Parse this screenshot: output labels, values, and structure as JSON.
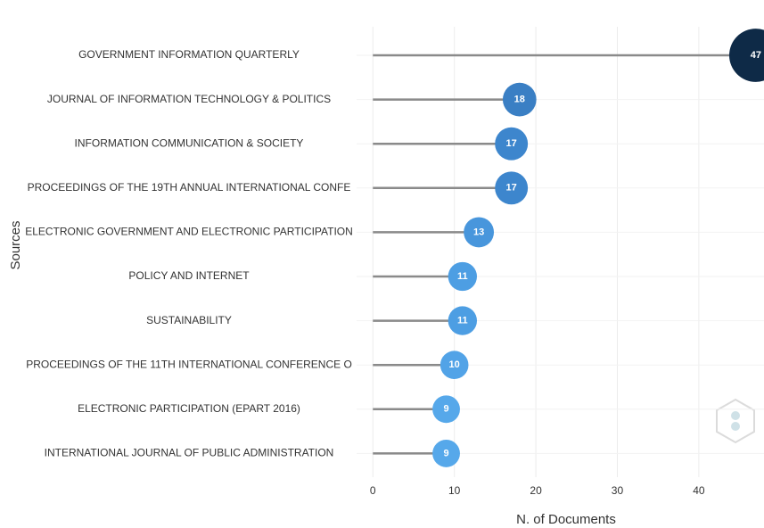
{
  "chart_data": {
    "type": "lollipop",
    "orientation": "horizontal",
    "ylabel": "Sources",
    "xlabel": "N. of Documents",
    "categories": [
      "GOVERNMENT INFORMATION QUARTERLY",
      "JOURNAL OF INFORMATION TECHNOLOGY & POLITICS",
      "INFORMATION COMMUNICATION & SOCIETY",
      "PROCEEDINGS OF THE 19TH ANNUAL INTERNATIONAL CONFE",
      "ELECTRONIC GOVERNMENT AND ELECTRONIC PARTICIPATION",
      "POLICY AND INTERNET",
      "SUSTAINABILITY",
      "PROCEEDINGS OF THE 11TH INTERNATIONAL CONFERENCE O",
      "ELECTRONIC PARTICIPATION (EPART 2016)",
      "INTERNATIONAL JOURNAL OF PUBLIC ADMINISTRATION"
    ],
    "values": [
      47,
      18,
      17,
      17,
      13,
      11,
      11,
      10,
      9,
      9
    ],
    "colors": [
      "#0e2a47",
      "#3a7fc4",
      "#3d86cd",
      "#3d86cd",
      "#4896dc",
      "#4d9ee3",
      "#4d9ee3",
      "#52a3e7",
      "#56a8ea",
      "#56a8ea"
    ],
    "xlim": [
      -2,
      48
    ],
    "xticks": [
      0,
      10,
      20,
      30,
      40
    ],
    "grid": true
  }
}
